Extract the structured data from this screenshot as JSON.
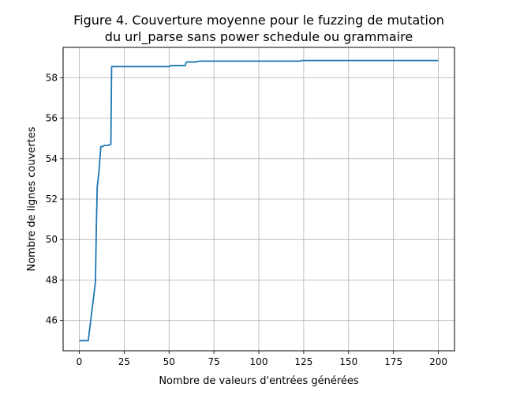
{
  "chart_data": {
    "type": "line",
    "title": "Figure 4. Couverture moyenne pour le fuzzing de mutation du url_parse sans power schedule ou grammaire",
    "title_lines": [
      "Figure 4. Couverture moyenne pour le fuzzing de mutation",
      "du url_parse sans power schedule ou grammaire"
    ],
    "xlabel": "Nombre de valeurs d'entrées générées",
    "ylabel": "Nombre de lignes couvertes",
    "xlim": [
      -9,
      209
    ],
    "ylim": [
      44.5,
      59.5
    ],
    "xticks": [
      0,
      25,
      50,
      75,
      100,
      125,
      150,
      175,
      200
    ],
    "yticks": [
      46,
      48,
      50,
      52,
      54,
      56,
      58
    ],
    "grid": true,
    "colors": {
      "line": "#1f77b4",
      "grid": "#b0b0b0",
      "axes": "#000000"
    },
    "series": [
      {
        "x": [
          0,
          5,
          9,
          9.5,
          10,
          11,
          12,
          13,
          14,
          15,
          16,
          17,
          17.6,
          18,
          20,
          30,
          40,
          50,
          51,
          55,
          59,
          59.5,
          60,
          65,
          67,
          80,
          100,
          123,
          124,
          130,
          150,
          175,
          200
        ],
        "y": [
          45.0,
          45.0,
          47.9,
          50.6,
          52.6,
          53.4,
          54.6,
          54.6,
          54.65,
          54.65,
          54.65,
          54.7,
          54.7,
          58.55,
          58.55,
          58.55,
          58.55,
          58.55,
          58.6,
          58.6,
          58.6,
          58.75,
          58.78,
          58.78,
          58.82,
          58.82,
          58.82,
          58.82,
          58.85,
          58.85,
          58.85,
          58.85,
          58.85
        ]
      }
    ]
  }
}
